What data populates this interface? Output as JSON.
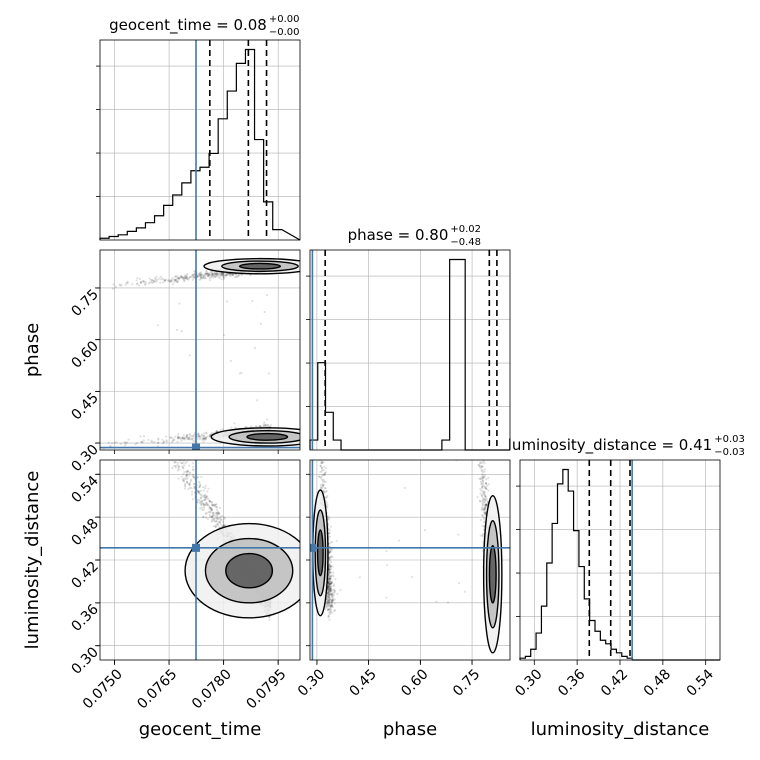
{
  "chart_data": {
    "type": "corner",
    "parameters": [
      {
        "name": "geocent_time",
        "title": {
          "text": "geocent_time = 0.08",
          "sup": "+0.00",
          "sub": "−0.00"
        },
        "axis_label": "geocent_time",
        "range": [
          0.0746,
          0.0801
        ],
        "ticks": [
          0.075,
          0.0765,
          0.078,
          0.0795
        ],
        "tick_labels": [
          "0.0750",
          "0.0765",
          "0.0780",
          "0.0795"
        ],
        "truth": 0.07724,
        "quantiles": [
          0.07762,
          0.07868,
          0.07918
        ],
        "hist_step": 0.00025,
        "hist_values": [
          0.1,
          0.2,
          0.3,
          0.5,
          0.7,
          1.0,
          1.4,
          2.0,
          2.6,
          3.3,
          4.0,
          4.2,
          5.0,
          7.0,
          8.6,
          10.2,
          11.0,
          5.8,
          2.2,
          0.6
        ]
      },
      {
        "name": "phase",
        "title": {
          "text": "phase = 0.80",
          "sup": "+0.02",
          "sub": "−0.48"
        },
        "axis_label": "phase",
        "range": [
          0.28,
          0.86
        ],
        "ticks": [
          0.3,
          0.45,
          0.6,
          0.75
        ],
        "tick_labels": [
          "0.30",
          "0.45",
          "0.60",
          "0.75"
        ],
        "truth": 0.287,
        "quantiles": [
          0.324,
          0.8,
          0.822
        ],
        "hist_step": 0.0225,
        "hist_values": [
          0.5,
          4.4,
          1.9,
          0.5,
          0,
          0,
          0,
          0,
          0,
          0,
          0,
          0,
          0,
          0,
          0,
          0,
          0,
          0.5,
          9.6,
          9.6,
          0,
          0,
          0,
          0,
          0,
          0
        ]
      },
      {
        "name": "luminosity_distance",
        "title": {
          "text": "luminosity_distance = 0.41",
          "sup": "+0.03",
          "sub": "−0.03"
        },
        "axis_label": "luminosity_distance",
        "range": [
          0.28,
          0.56
        ],
        "ticks": [
          0.3,
          0.36,
          0.42,
          0.48,
          0.54
        ],
        "tick_labels": [
          "0.30",
          "0.36",
          "0.42",
          "0.48",
          "0.54"
        ],
        "truth": 0.437,
        "quantiles": [
          0.377,
          0.407,
          0.434
        ],
        "hist_step": 0.0075,
        "hist_values": [
          0.1,
          0.2,
          0.6,
          1.5,
          3.0,
          5.4,
          7.6,
          9.8,
          10.6,
          9.4,
          7.2,
          5.2,
          3.4,
          2.2,
          1.6,
          1.1,
          0.9,
          0.6,
          0.4,
          0.2,
          0.1,
          0,
          0,
          0,
          0,
          0,
          0,
          0,
          0,
          0,
          0,
          0,
          0,
          0,
          0,
          0,
          0
        ]
      }
    ],
    "grid": true
  },
  "colors": {
    "truth": "#4477aa",
    "hist": "#000000",
    "grid": "#b0b0b0",
    "scatter": "#000000"
  }
}
